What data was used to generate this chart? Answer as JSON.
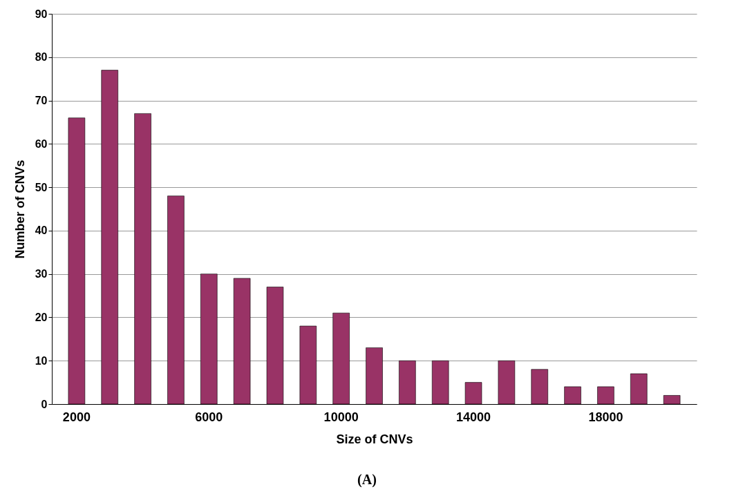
{
  "chart_data": {
    "type": "bar",
    "xlabel": "Size of CNVs",
    "ylabel": "Number of CNVs",
    "categories": [
      "2000",
      null,
      null,
      null,
      "6000",
      null,
      null,
      null,
      "10000",
      null,
      null,
      null,
      "14000",
      null,
      null,
      null,
      "18000",
      null,
      null
    ],
    "values": [
      66,
      77,
      67,
      48,
      30,
      29,
      27,
      18,
      21,
      13,
      10,
      10,
      5,
      10,
      8,
      4,
      4,
      7,
      2
    ],
    "color": "#993366",
    "ylim": [
      0,
      90
    ],
    "yticks": [
      0,
      10,
      20,
      30,
      40,
      50,
      60,
      70,
      80,
      90
    ],
    "grid": "y",
    "annotations": [
      "(A)"
    ]
  }
}
